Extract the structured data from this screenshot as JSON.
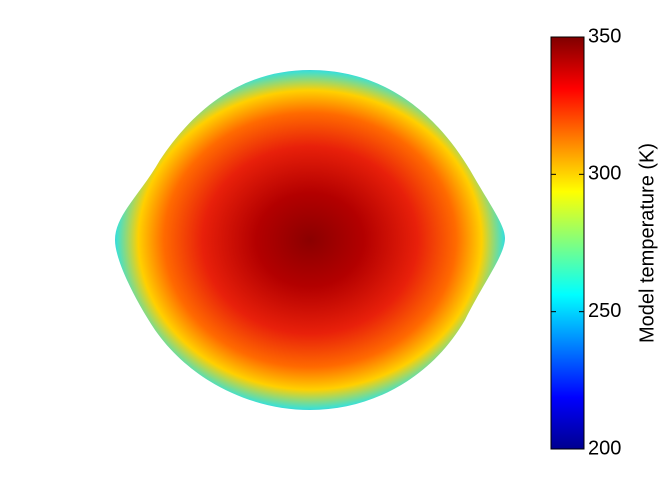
{
  "chart_data": {
    "type": "heatmap",
    "colormap": "jet",
    "colorbar_label": "Model temperature (K)",
    "clim": [
      200,
      350
    ],
    "cticks": [
      200,
      250,
      300,
      350
    ]
  }
}
